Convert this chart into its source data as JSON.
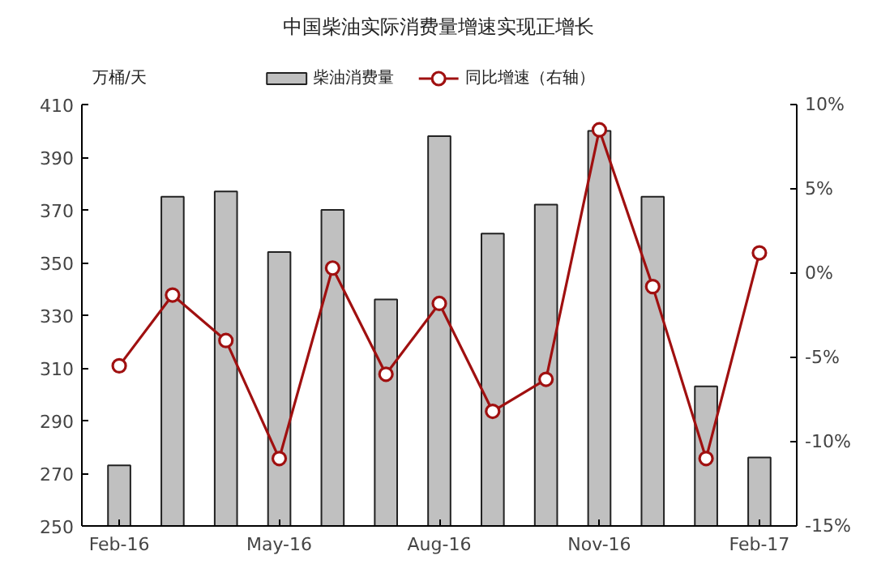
{
  "chart_data": {
    "type": "bar",
    "title": "中国柴油实际消费量增速实现正增长",
    "ylabel": "万桶/天",
    "categories": [
      "Feb-16",
      null,
      null,
      "May-16",
      null,
      null,
      "Aug-16",
      null,
      null,
      "Nov-16",
      null,
      null,
      "Feb-17"
    ],
    "series": [
      {
        "name": "柴油消费量",
        "color": "#c0c0c0",
        "values": [
          273,
          375,
          377,
          354,
          370,
          336,
          398,
          361,
          372,
          400,
          375,
          303,
          276
        ]
      },
      {
        "name": "同比增速（右轴）",
        "type": "line",
        "axis": "y2",
        "color": "#a01010",
        "marker": "circle",
        "values": [
          -5.5,
          -1.3,
          -4,
          -11,
          0.3,
          -6,
          -1.8,
          -8.2,
          -6.3,
          8.5,
          -0.8,
          -11,
          1.2
        ]
      }
    ],
    "ylim": [
      250,
      410
    ],
    "yticks": [
      250,
      270,
      290,
      310,
      330,
      350,
      370,
      390,
      410
    ],
    "y2lim": [
      -15,
      10
    ],
    "y2ticks": [
      {
        "value": -15,
        "label": "-15%"
      },
      {
        "value": -10,
        "label": "-10%"
      },
      {
        "value": -5,
        "label": "-5%"
      },
      {
        "value": 0,
        "label": "0%"
      },
      {
        "value": 5,
        "label": "5%"
      },
      {
        "value": 10,
        "label": "10%"
      }
    ],
    "grid": false,
    "legend": "top"
  }
}
